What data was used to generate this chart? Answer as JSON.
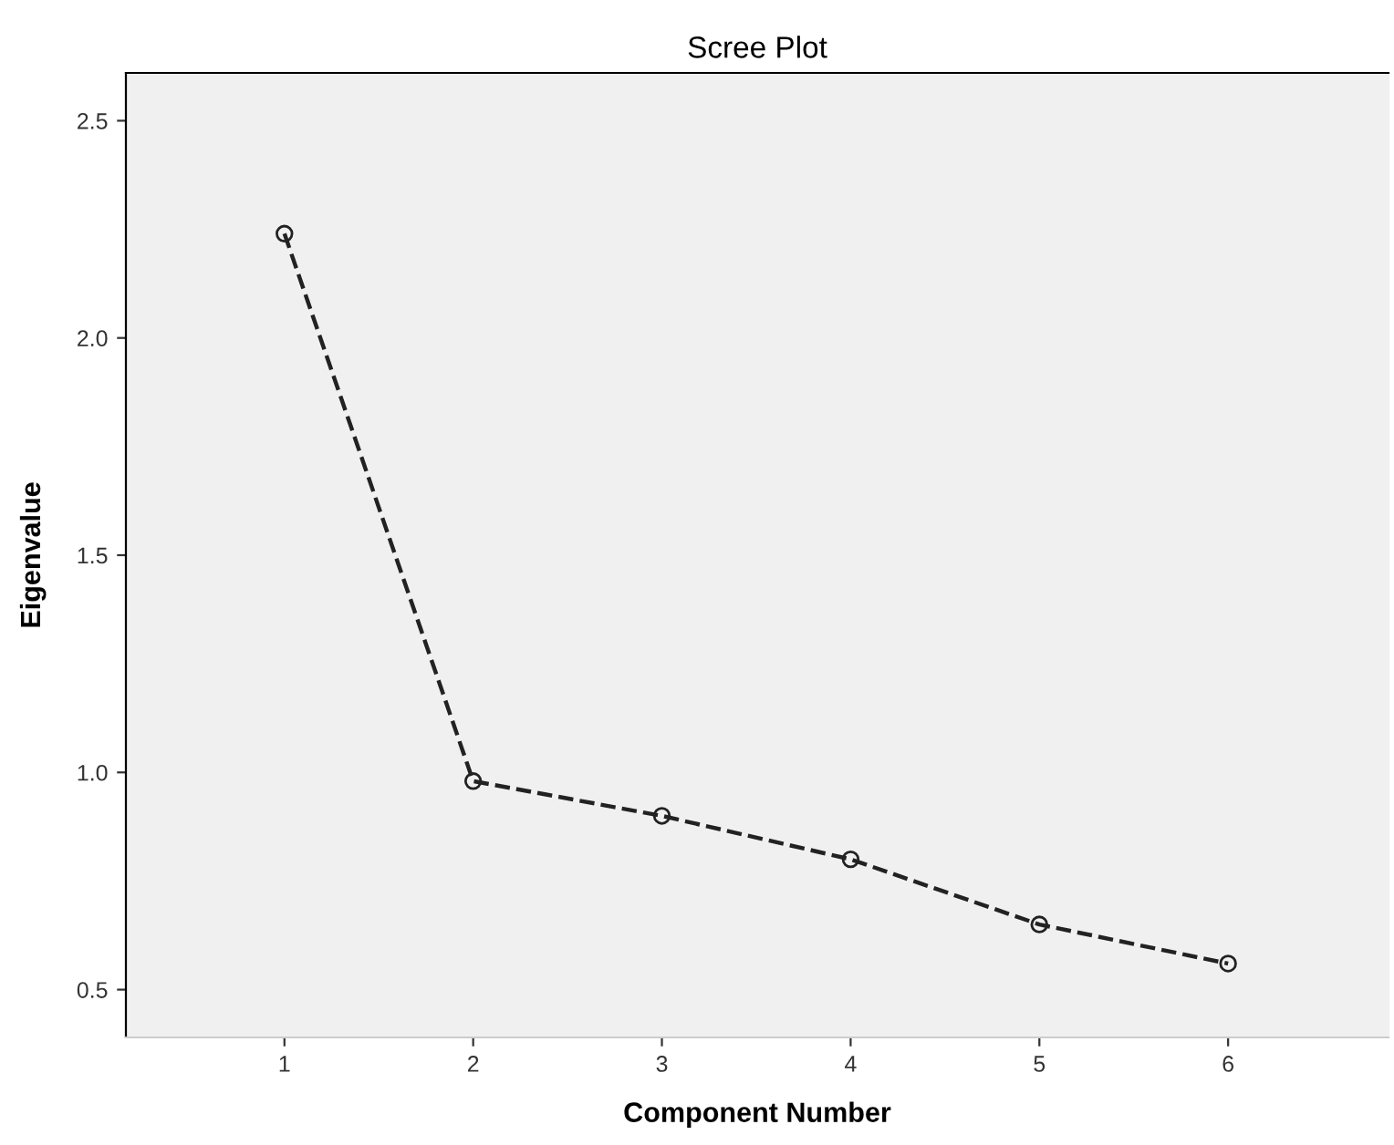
{
  "chart_data": {
    "type": "line",
    "title": "Scree Plot",
    "xlabel": "Component Number",
    "ylabel": "Eigenvalue",
    "x": [
      1,
      2,
      3,
      4,
      5,
      6
    ],
    "series": [
      {
        "color": "#222222",
        "values": [
          2.24,
          0.98,
          0.9,
          0.8,
          0.65,
          0.56
        ]
      }
    ],
    "xlim": [
      0.16,
      6.85
    ],
    "xticks": [
      1,
      2,
      3,
      4,
      5,
      6
    ],
    "ylim": [
      0.39,
      2.61
    ],
    "yticks": [
      {
        "value": 0.5,
        "label": "0.5"
      },
      {
        "value": 1.0,
        "label": "1.0"
      },
      {
        "value": 1.5,
        "label": "1.5"
      },
      {
        "value": 2.0,
        "label": "2.0"
      },
      {
        "value": 2.5,
        "label": "2.5"
      }
    ],
    "marker": "circle",
    "line_style": "dashed",
    "grid": false
  }
}
